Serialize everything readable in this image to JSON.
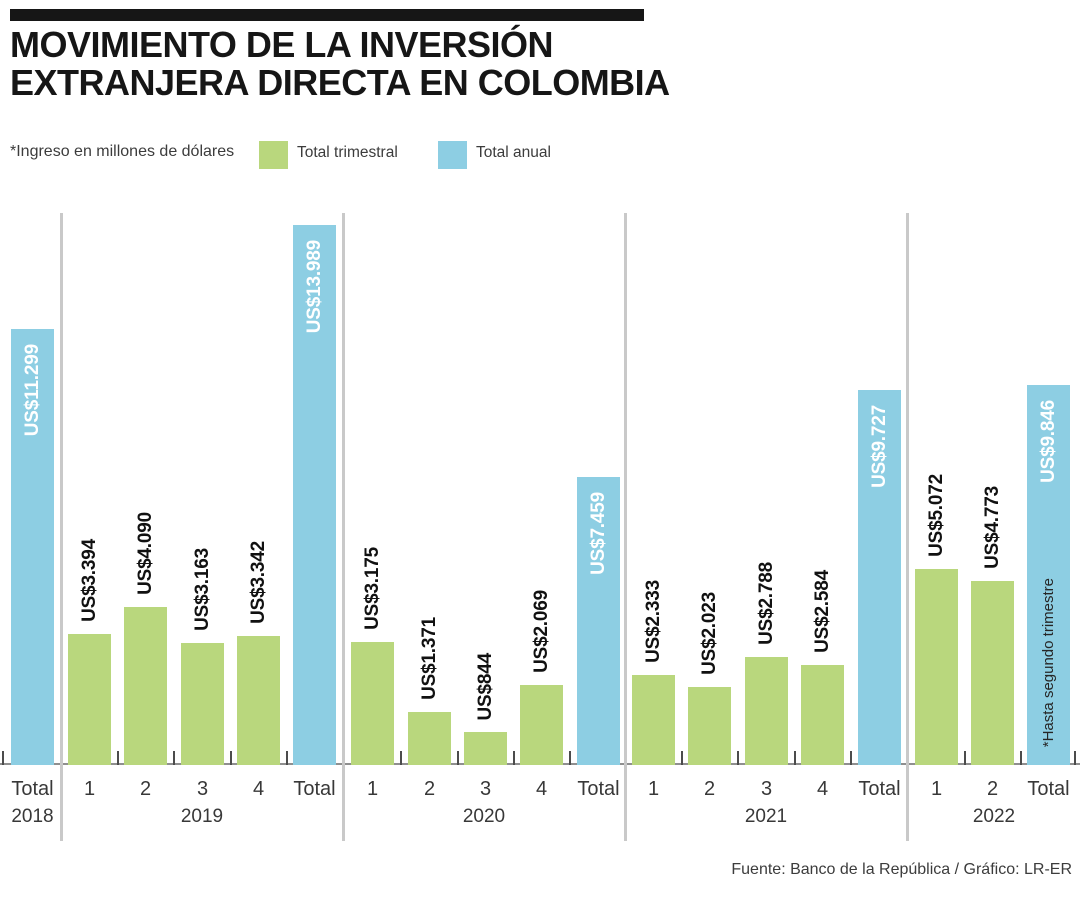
{
  "title": {
    "line1": "MOVIMIENTO DE LA INVERSIÓN",
    "line2": "EXTRANJERA DIRECTA EN COLOMBIA"
  },
  "legend": {
    "note": "*Ingreso en millones de dólares",
    "items": [
      {
        "label": "Total trimestral",
        "color": "#b9d77d"
      },
      {
        "label": "Total anual",
        "color": "#8dcee3"
      }
    ]
  },
  "footer": {
    "credit": "Fuente: Banco de la República / Gráfico: LR-ER"
  },
  "chart_data": {
    "type": "bar",
    "unit": "millones de dólares (US$)",
    "ylim": [
      0,
      14000
    ],
    "grid": false,
    "legend_position": "top",
    "colors": {
      "quarter": "#b9d77d",
      "total": "#8dcee3"
    },
    "annotation": "*Hasta segundo trimestre",
    "groups": [
      {
        "year": "2018",
        "bars": [
          {
            "label": "Total",
            "kind": "total",
            "value": 11299,
            "display": "US$11.299"
          }
        ]
      },
      {
        "year": "2019",
        "bars": [
          {
            "label": "1",
            "kind": "quarter",
            "value": 3394,
            "display": "US$3.394"
          },
          {
            "label": "2",
            "kind": "quarter",
            "value": 4090,
            "display": "US$4.090"
          },
          {
            "label": "3",
            "kind": "quarter",
            "value": 3163,
            "display": "US$3.163"
          },
          {
            "label": "4",
            "kind": "quarter",
            "value": 3342,
            "display": "US$3.342"
          },
          {
            "label": "Total",
            "kind": "total",
            "value": 13989,
            "display": "US$13.989"
          }
        ]
      },
      {
        "year": "2020",
        "bars": [
          {
            "label": "1",
            "kind": "quarter",
            "value": 3175,
            "display": "US$3.175"
          },
          {
            "label": "2",
            "kind": "quarter",
            "value": 1371,
            "display": "US$1.371"
          },
          {
            "label": "3",
            "kind": "quarter",
            "value": 844,
            "display": "US$844"
          },
          {
            "label": "4",
            "kind": "quarter",
            "value": 2069,
            "display": "US$2.069"
          },
          {
            "label": "Total",
            "kind": "total",
            "value": 7459,
            "display": "US$7.459"
          }
        ]
      },
      {
        "year": "2021",
        "bars": [
          {
            "label": "1",
            "kind": "quarter",
            "value": 2333,
            "display": "US$2.333"
          },
          {
            "label": "2",
            "kind": "quarter",
            "value": 2023,
            "display": "US$2.023"
          },
          {
            "label": "3",
            "kind": "quarter",
            "value": 2788,
            "display": "US$2.788"
          },
          {
            "label": "4",
            "kind": "quarter",
            "value": 2584,
            "display": "US$2.584"
          },
          {
            "label": "Total",
            "kind": "total",
            "value": 9727,
            "display": "US$9.727"
          }
        ]
      },
      {
        "year": "2022",
        "bars": [
          {
            "label": "1",
            "kind": "quarter",
            "value": 5072,
            "display": "US$5.072"
          },
          {
            "label": "2",
            "kind": "quarter",
            "value": 4773,
            "display": "US$4.773"
          },
          {
            "label": "Total",
            "kind": "total",
            "value": 9846,
            "display": "US$9.846",
            "note": "*Hasta segundo trimestre"
          }
        ]
      }
    ]
  }
}
